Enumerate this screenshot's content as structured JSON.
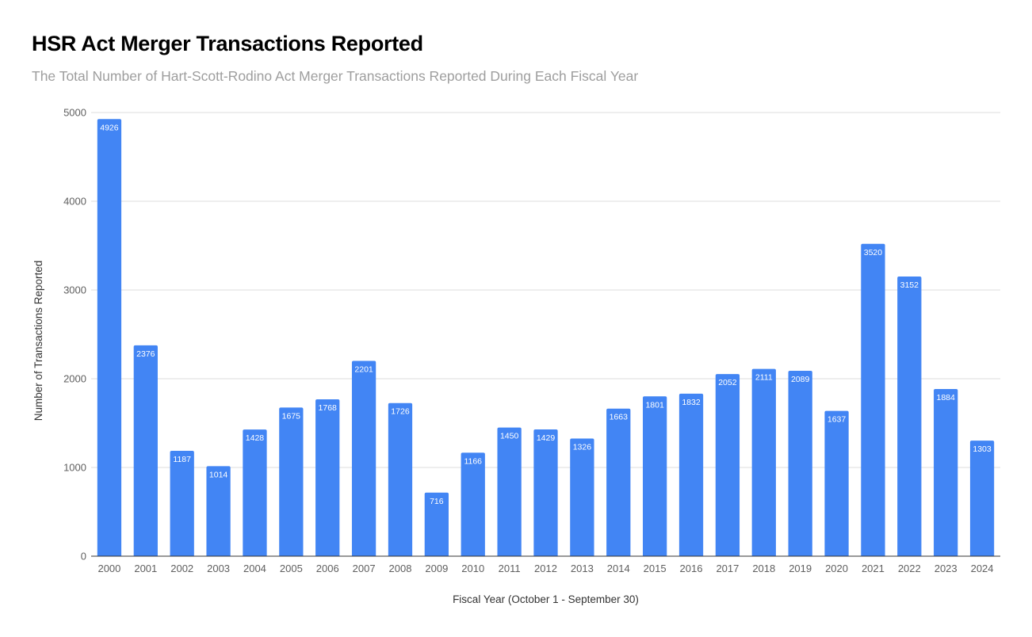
{
  "title": "HSR Act Merger Transactions Reported",
  "subtitle": "The Total Number of Hart-Scott-Rodino Act Merger Transactions Reported During Each Fiscal Year",
  "colors": {
    "bar": "#4285f4",
    "grid": "#dddddd",
    "baseline": "#333333"
  },
  "chart_data": {
    "type": "bar",
    "title": "HSR Act Merger Transactions Reported",
    "subtitle": "The Total Number of Hart-Scott-Rodino Act Merger Transactions Reported During Each Fiscal Year",
    "xlabel": "Fiscal Year (October 1 - September 30)",
    "ylabel": "Number of Transactions Reported",
    "ylim": [
      0,
      5000
    ],
    "yticks": [
      0,
      1000,
      2000,
      3000,
      4000,
      5000
    ],
    "grid": true,
    "legend": "none",
    "categories": [
      "2000",
      "2001",
      "2002",
      "2003",
      "2004",
      "2005",
      "2006",
      "2007",
      "2008",
      "2009",
      "2010",
      "2011",
      "2012",
      "2013",
      "2014",
      "2015",
      "2016",
      "2017",
      "2018",
      "2019",
      "2020",
      "2021",
      "2022",
      "2023",
      "2024"
    ],
    "values": [
      4926,
      2376,
      1187,
      1014,
      1428,
      1675,
      1768,
      2201,
      1726,
      716,
      1166,
      1450,
      1429,
      1326,
      1663,
      1801,
      1832,
      2052,
      2111,
      2089,
      1637,
      3520,
      3152,
      1884,
      1303
    ],
    "data_labels": true
  }
}
